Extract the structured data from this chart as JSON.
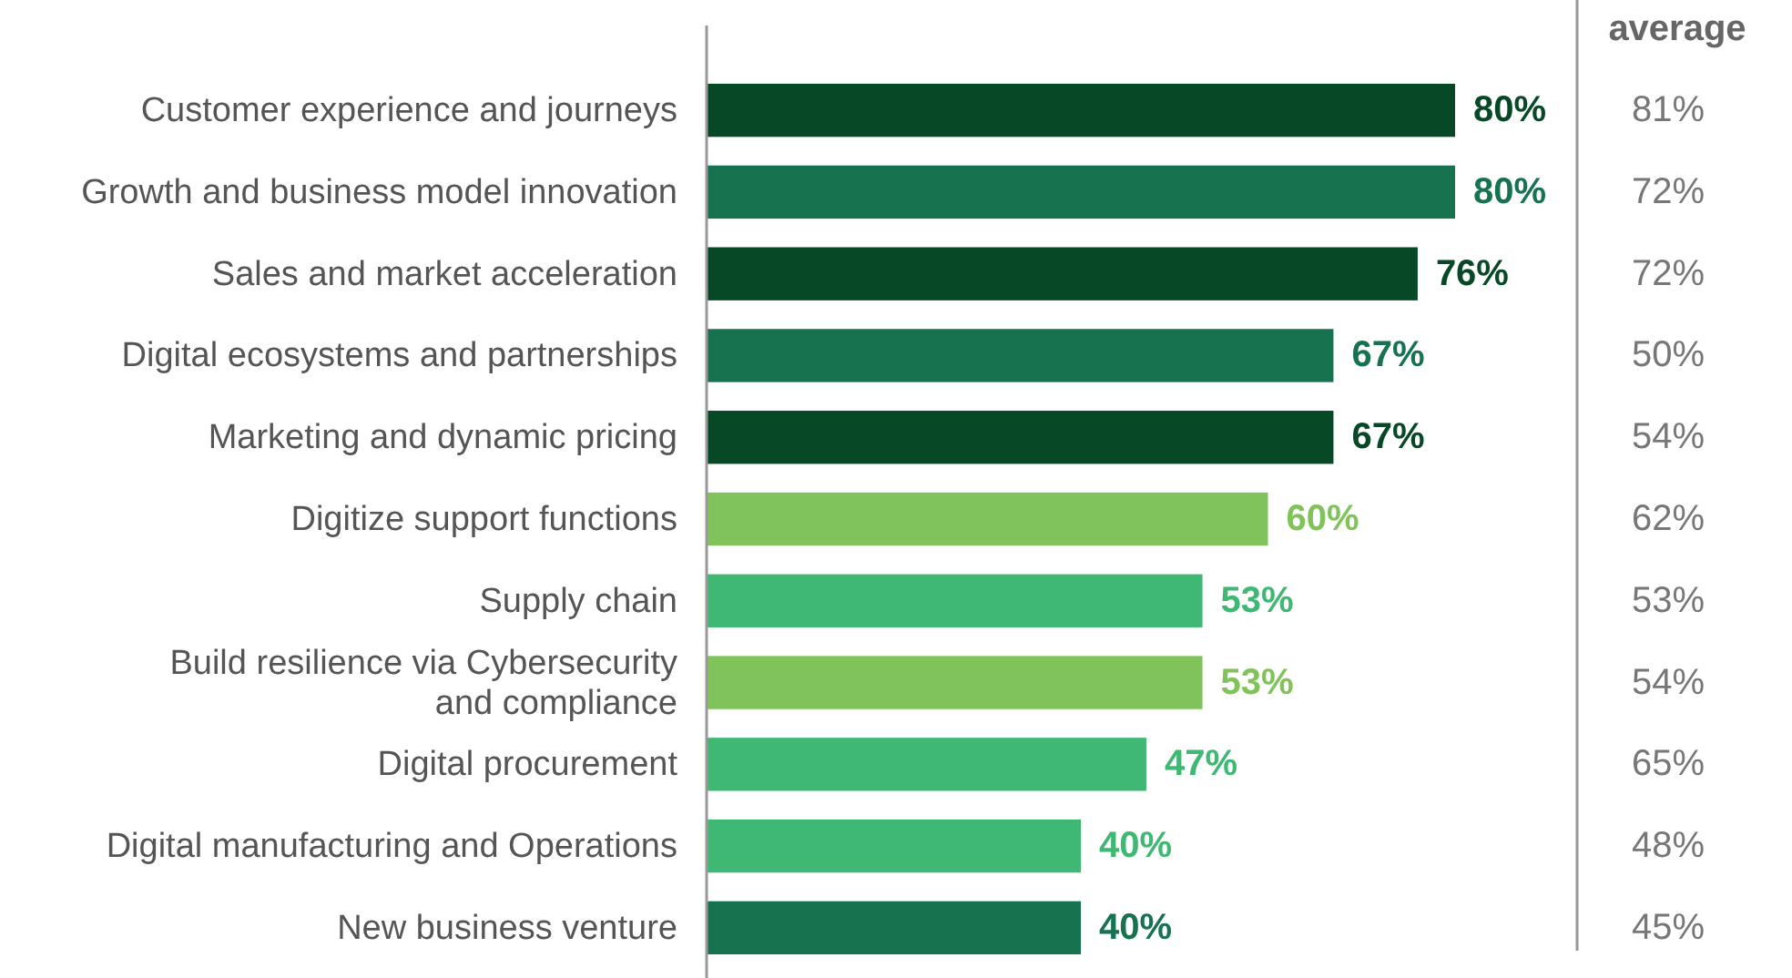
{
  "chart_data": {
    "type": "bar",
    "orientation": "horizontal",
    "categories": [
      "Customer experience and journeys",
      "Growth and business model innovation",
      "Sales and market acceleration",
      "Digital ecosystems and partnerships",
      "Marketing and dynamic pricing",
      "Digitize support functions",
      "Supply chain",
      "Build resilience via Cybersecurity and compliance",
      "Digital procurement",
      "Digital manufacturing and Operations",
      "New business venture"
    ],
    "values": [
      80,
      80,
      76,
      67,
      67,
      60,
      53,
      53,
      47,
      40,
      40
    ],
    "value_labels": [
      "80%",
      "80%",
      "76%",
      "67%",
      "67%",
      "60%",
      "53%",
      "53%",
      "47%",
      "40%",
      "40%"
    ],
    "colors": [
      "#074826",
      "#17734f",
      "#074826",
      "#17734f",
      "#074826",
      "#80c35a",
      "#3fb874",
      "#80c35a",
      "#3fb874",
      "#3fb874",
      "#17734f"
    ],
    "annotations": [
      "average",
      "81%",
      "72%",
      "72%",
      "50%",
      "54%",
      "62%",
      "53%",
      "54%",
      "65%",
      "48%",
      "45%"
    ]
  }
}
